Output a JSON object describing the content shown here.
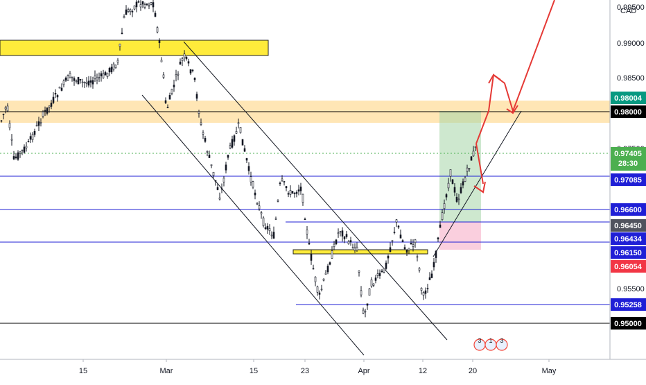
{
  "symbol_label": "CAD",
  "chart_data": {
    "type": "candlestick",
    "x_ticks": [
      "15",
      "Mar",
      "15",
      "23",
      "Apr",
      "12",
      "20",
      "May"
    ],
    "y_ticks": [
      "0.99500",
      "0.99000",
      "0.98500",
      "0.97500",
      "0.95500"
    ],
    "y_range": [
      0.9482,
      0.9961
    ],
    "price_labels": [
      {
        "value": 0.98004,
        "text": "0.98004",
        "bg": "#089981",
        "fg": "#ffffff"
      },
      {
        "value": 0.98,
        "text": "0.98000",
        "bg": "#000000",
        "fg": "#ffffff"
      },
      {
        "value": 0.97405,
        "text": "0.97405",
        "sub": "28:30",
        "bg": "#4caf50",
        "fg": "#ffffff"
      },
      {
        "value": 0.97085,
        "text": "0.97085",
        "bg": "#1f1fd6",
        "fg": "#ffffff"
      },
      {
        "value": 0.966,
        "text": "0.96600",
        "bg": "#1f1fd6",
        "fg": "#ffffff"
      },
      {
        "value": 0.9645,
        "text": "0.96450",
        "bg": "#50535e",
        "fg": "#ffffff"
      },
      {
        "value": 0.96434,
        "text": "0.96434",
        "bg": "#1f1fd6",
        "fg": "#ffffff"
      },
      {
        "value": 0.9615,
        "text": "0.96150",
        "bg": "#1f1fd6",
        "fg": "#ffffff"
      },
      {
        "value": 0.96054,
        "text": "0.96054",
        "bg": "#f23645",
        "fg": "#ffffff"
      },
      {
        "value": 0.95258,
        "text": "0.95258",
        "bg": "#1f1fd6",
        "fg": "#ffffff"
      },
      {
        "value": 0.95,
        "text": "0.95000",
        "bg": "#000000",
        "fg": "#ffffff"
      }
    ],
    "horizontal_levels": [
      {
        "value": 0.97085,
        "color": "#1f1fd6"
      },
      {
        "value": 0.966,
        "color": "#1f1fd6"
      },
      {
        "value": 0.96434,
        "color": "#1f1fd6"
      },
      {
        "value": 0.95,
        "color": "#000000"
      },
      {
        "value": 0.98,
        "color": "#000000"
      }
    ],
    "colors": {
      "up": "#131722",
      "down": "#131722",
      "zone_yellow": "#ffeb3b",
      "zone_orange": "#ffe0a3",
      "target": "#a5d6a7",
      "stop": "#f8bbd0",
      "arrow": "#e53935",
      "level_blue": "#1f1fd6"
    },
    "badges": [
      "3",
      "1",
      "3"
    ]
  }
}
